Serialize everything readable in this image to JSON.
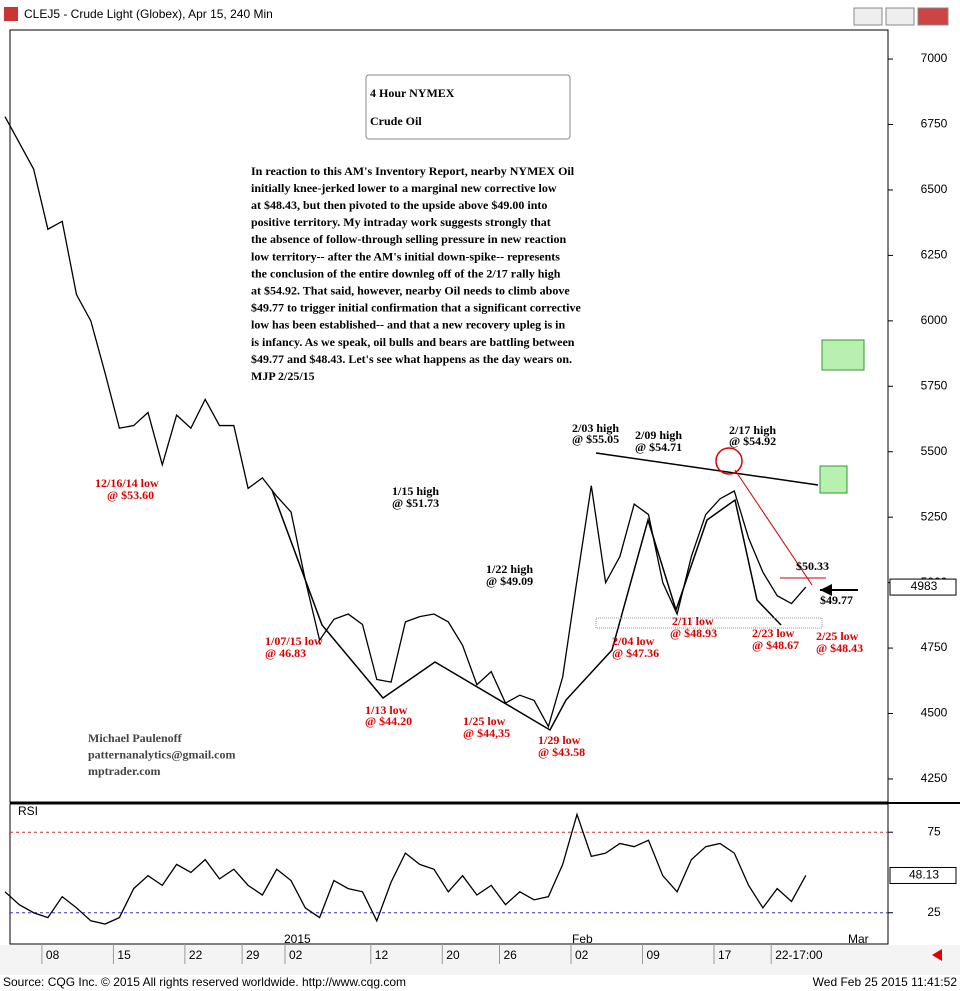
{
  "window": {
    "title": "CLEJ5 - Crude Light (Globex), Apr 15, 240 Min"
  },
  "footer": {
    "source": "Source: CQG Inc. © 2015 All rights reserved worldwide. http://www.cqg.com",
    "timestamp": "Wed Feb 25 2015 11:41:52"
  },
  "chart_data": [
    {
      "type": "line",
      "title_lines": [
        "4 Hour NYMEX",
        "Crude Oil"
      ],
      "commentary": [
        "In reaction to this AM's Inventory Report, nearby NYMEX Oil",
        "initially knee-jerked lower to a marginal new corrective low",
        "at $48.43, but then pivoted to the upside above $49.00 into",
        "positive territory. My intraday work suggests strongly that",
        "the absence of follow-through selling pressure in new reaction",
        "low territory-- after the AM's initial down-spike-- represents",
        "the conclusion of the entire downleg off of the 2/17 rally high",
        "at $54.92. That said, however, nearby Oil needs to climb above",
        "$49.77 to trigger initial confirmation that a significant corrective",
        "low has been established-- and that a new recovery upleg is in",
        "is infancy. As we speak, oil bulls and bears are battling between",
        "$49.77 and $48.43. Let's see what happens as the day wears on.",
        "MJP 2/25/15"
      ],
      "author": [
        "Michael Paulenoff",
        "patternanalytics@gmail.com",
        "mptrader.com"
      ],
      "annotations": [
        "12/16/14 low",
        "@ $53.60",
        "1/15 high",
        "@ $51.73",
        "1/07/15 low",
        "@ 46.83",
        "1/13 low",
        "@ $44.20",
        "1/22 high",
        "@ $49.09",
        "1/25 low",
        "@ $44,35",
        "1/29 low",
        "@ $43.58",
        "2/03 high",
        "@ $55.05",
        "2/09 high",
        "@ $54.71",
        "2/17 high",
        "@ $54.92",
        "2/04 low",
        "@ $47.36",
        "2/11 low",
        "@ $48.93",
        "2/23 low",
        "@ $48.67",
        "2/25 low",
        "@ $48.43",
        "$50.33",
        "$49.77"
      ],
      "categories": [
        null,
        null,
        null,
        "08",
        null,
        null,
        null,
        null,
        "15",
        null,
        null,
        null,
        null,
        "22",
        null,
        null,
        null,
        "29",
        null,
        null,
        "02",
        null,
        null,
        null,
        null,
        null,
        "12",
        null,
        null,
        null,
        null,
        "20",
        null,
        null,
        null,
        "26",
        null,
        null,
        null,
        null,
        "02",
        null,
        null,
        null,
        null,
        "09",
        null,
        null,
        null,
        null,
        "17",
        null,
        null,
        null,
        "22-17:00",
        null,
        null
      ],
      "series": [
        {
          "color": "#000000",
          "values": [
            6780,
            6680,
            6580,
            6350,
            6380,
            6100,
            6000,
            5800,
            5590,
            5600,
            5650,
            5450,
            5640,
            5590,
            5700,
            5600,
            5600,
            5360,
            5400,
            5330,
            5270,
            5010,
            4780,
            4860,
            4880,
            4840,
            4630,
            4620,
            4850,
            4870,
            4880,
            4850,
            4760,
            4610,
            4660,
            4540,
            4570,
            4550,
            4450,
            4640,
            5010,
            5370,
            5000,
            5100,
            5300,
            5260,
            5000,
            4880,
            5100,
            5260,
            5320,
            5350,
            5170,
            5040,
            4950,
            4920,
            4983
          ]
        }
      ],
      "ylim": [
        4162,
        7111
      ],
      "yticks": [
        4250,
        4500,
        4750,
        5000,
        5250,
        5500,
        5750,
        6000,
        6250,
        6500,
        6750,
        7000
      ]
    },
    {
      "type": "line",
      "label": "RSI",
      "x_period_labels": [
        "2015",
        "Feb",
        "Mar"
      ],
      "series": [
        {
          "color": "#000000",
          "values": [
            38,
            30,
            25,
            22,
            35,
            28,
            20,
            18,
            22,
            40,
            48,
            42,
            55,
            50,
            58,
            46,
            52,
            42,
            36,
            52,
            45,
            28,
            22,
            45,
            40,
            38,
            20,
            44,
            62,
            55,
            52,
            38,
            48,
            36,
            42,
            30,
            38,
            33,
            35,
            55,
            86,
            60,
            62,
            68,
            66,
            70,
            48,
            38,
            58,
            66,
            68,
            62,
            42,
            28,
            40,
            32,
            48.13
          ]
        }
      ],
      "ylim": [
        5.6,
        92.5
      ],
      "yticks": [
        25,
        75
      ],
      "tick_colors": [
        "#3333cc",
        "#cc3333"
      ]
    }
  ]
}
